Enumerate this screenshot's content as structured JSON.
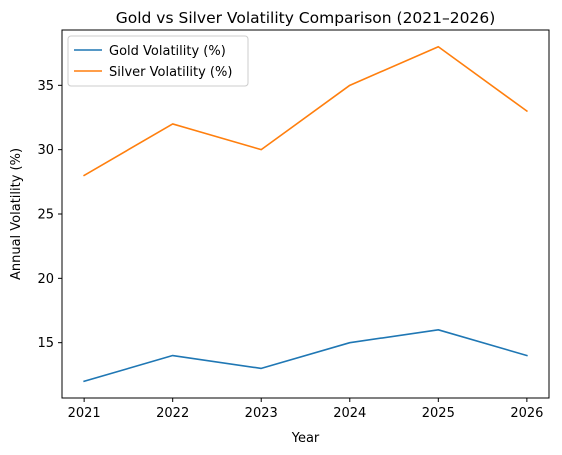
{
  "chart_data": {
    "type": "line",
    "title": "Gold vs Silver Volatility Comparison (2021–2026)",
    "xlabel": "Year",
    "ylabel": "Annual Volatility (%)",
    "categories": [
      "2021",
      "2022",
      "2023",
      "2024",
      "2025",
      "2026"
    ],
    "x": [
      2021,
      2022,
      2023,
      2024,
      2025,
      2026
    ],
    "ylim": [
      10.7,
      39.3
    ],
    "yticks": [
      15,
      20,
      25,
      30,
      35
    ],
    "grid": false,
    "legend": "top-left",
    "series": [
      {
        "name": "Gold Volatility (%)",
        "color": "#1f77b4",
        "values": [
          12,
          14,
          13,
          15,
          16,
          14
        ]
      },
      {
        "name": "Silver Volatility (%)",
        "color": "#ff7f0e",
        "values": [
          28,
          32,
          30,
          35,
          38,
          33
        ]
      }
    ]
  }
}
